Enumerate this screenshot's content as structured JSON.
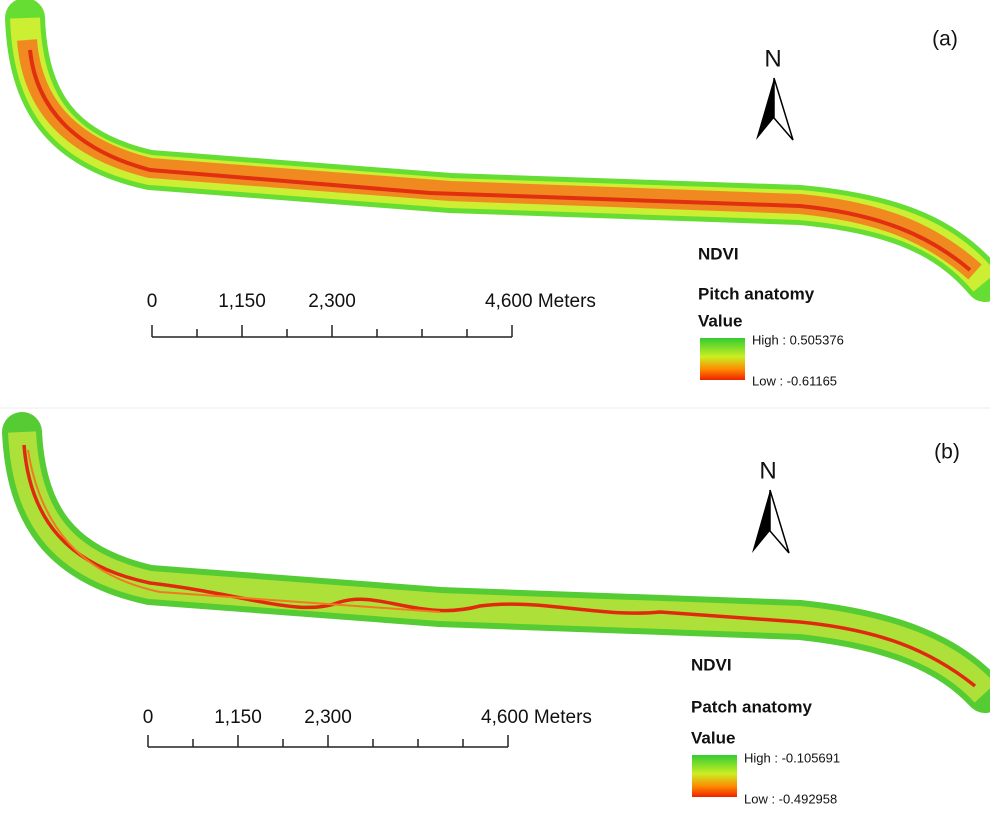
{
  "panels": [
    {
      "label": "(a)",
      "north": "N",
      "scale_labels": [
        "0",
        "1,150",
        "2,300",
        "4,600 Meters"
      ],
      "legend": {
        "title": "NDVI",
        "subtitle": "Pitch anatomy",
        "field": "Value",
        "high": "High : 0.505376",
        "low": "Low : -0.61165"
      }
    },
    {
      "label": "(b)",
      "north": "N",
      "scale_labels": [
        "0",
        "1,150",
        "2,300",
        "4,600 Meters"
      ],
      "legend": {
        "title": "NDVI",
        "subtitle": "Patch anatomy",
        "field": "Value",
        "high": "High : -0.105691",
        "low": "Low : -0.492958"
      }
    }
  ]
}
